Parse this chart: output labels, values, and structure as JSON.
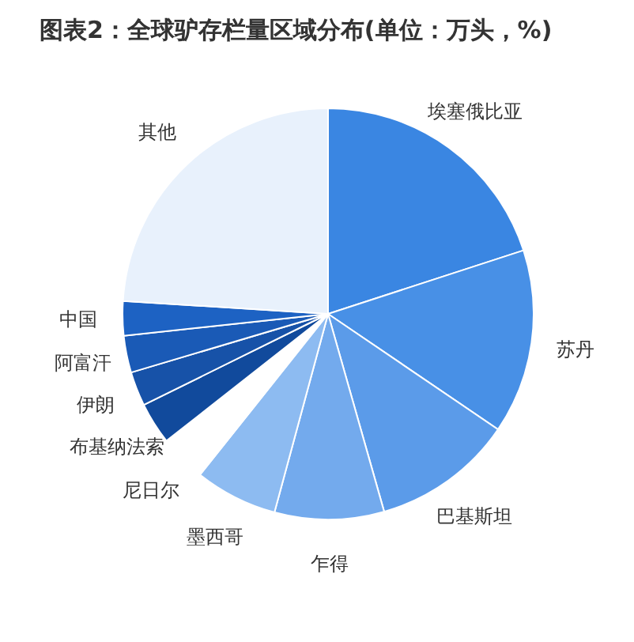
{
  "chart_data": {
    "type": "pie",
    "title": "图表2：全球驴存栏量区域分布(单位：万头，%)",
    "categories": [
      "埃塞俄比亚",
      "苏丹",
      "巴基斯坦",
      "乍得",
      "墨西哥",
      "尼日尔",
      "布基纳法索",
      "伊朗",
      "阿富汗",
      "中国",
      "其他"
    ],
    "values": [
      20.0,
      14.5,
      11.1,
      8.6,
      6.5,
      3.7,
      3.3,
      2.7,
      2.9,
      2.7,
      24.0
    ],
    "colors": [
      "#3a86e2",
      "#4890e6",
      "#5b9be9",
      "#73aaed",
      "#8dbbf1",
      "#ffffff",
      "#114a9c",
      "#1752a8",
      "#1a5ab6",
      "#1d62c3",
      "#e8f1fc"
    ]
  }
}
